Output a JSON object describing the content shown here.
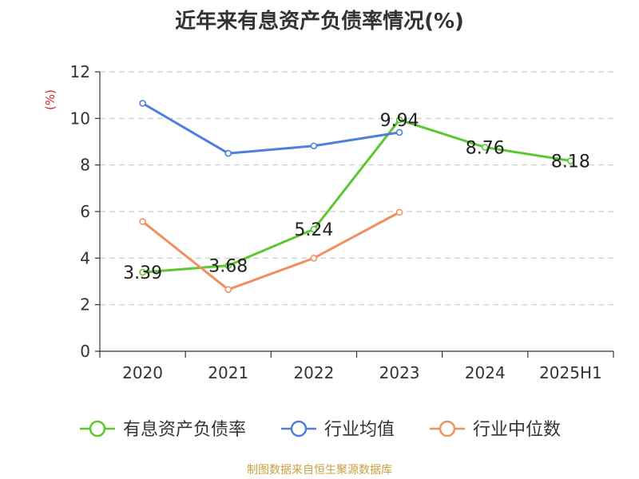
{
  "chart_data": {
    "type": "line",
    "title": "近年来有息资产负债率情况(%)",
    "ylabel": "(%)",
    "xlabel": "",
    "categories": [
      "2020",
      "2021",
      "2022",
      "2023",
      "2024",
      "2025H1"
    ],
    "ylim": [
      0,
      12
    ],
    "yticks": [
      0,
      2,
      4,
      6,
      8,
      10,
      12
    ],
    "grid": true,
    "legend_position": "bottom",
    "series": [
      {
        "name": "有息资产负债率",
        "color": "#5cc72e",
        "values": [
          3.39,
          3.68,
          5.24,
          9.94,
          8.76,
          8.18
        ],
        "labels": [
          "3.39",
          "3.68",
          "5.24",
          "9.94",
          "8.76",
          "8.18"
        ]
      },
      {
        "name": "行业均值",
        "color": "#4e7fdc",
        "values": [
          10.65,
          8.5,
          8.82,
          9.4,
          null,
          null
        ]
      },
      {
        "name": "行业中位数",
        "color": "#f28e5f",
        "values": [
          5.57,
          2.65,
          4.0,
          5.97,
          null,
          null
        ]
      }
    ]
  },
  "source_note": "制图数据来自恒生聚源数据库",
  "ylabel_color": "#e02020"
}
